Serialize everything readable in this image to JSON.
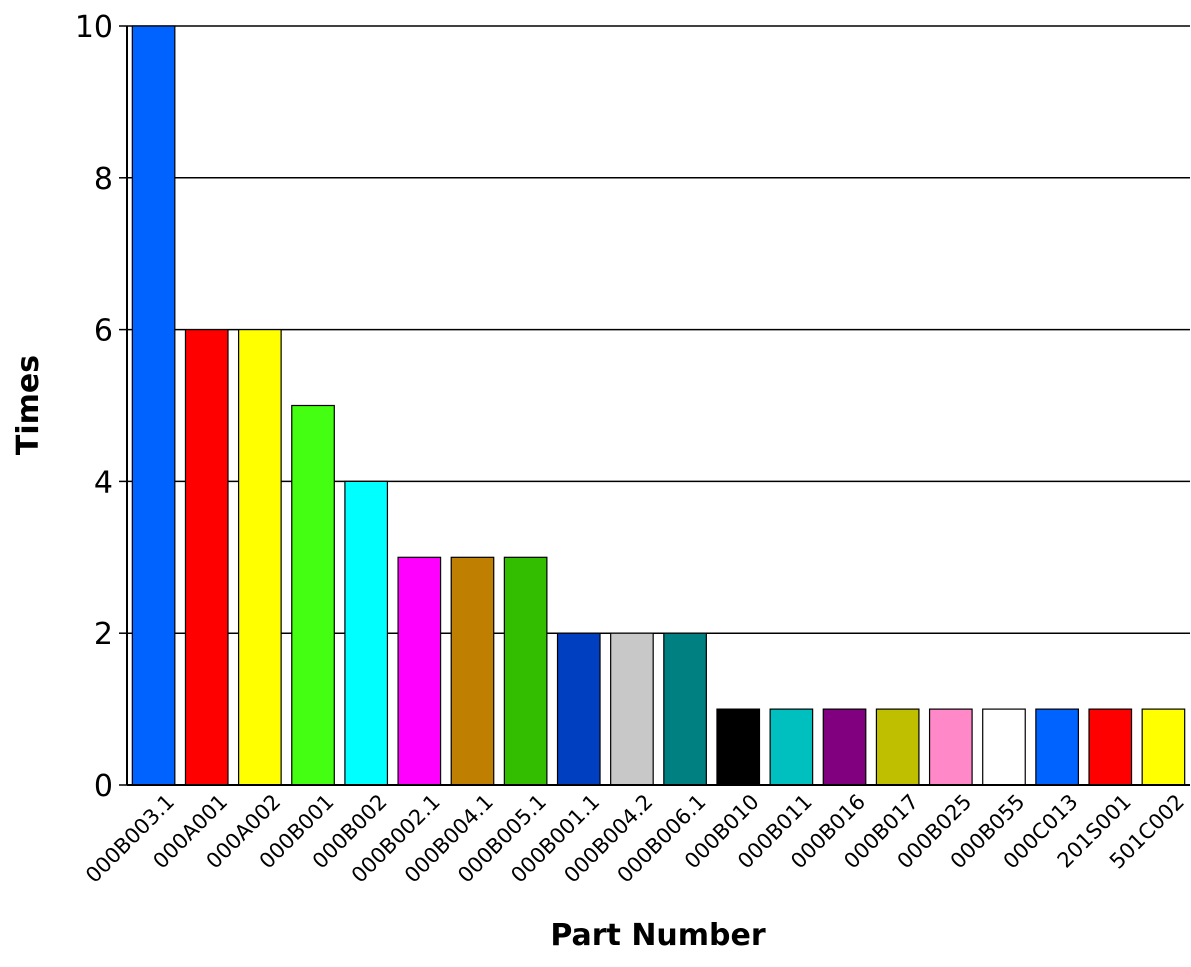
{
  "chart_data": {
    "type": "bar",
    "title": "",
    "xlabel": "Part Number",
    "ylabel": "Times",
    "ylim": [
      0,
      10
    ],
    "yticks": [
      0,
      2,
      4,
      6,
      8,
      10
    ],
    "grid": true,
    "categories": [
      "000B003.1",
      "000A001",
      "000A002",
      "000B001",
      "000B002",
      "000B002.1",
      "000B004.1",
      "000B005.1",
      "000B001.1",
      "000B004.2",
      "000B006.1",
      "000B010",
      "000B011",
      "000B016",
      "000B017",
      "000B025",
      "000B055",
      "000C013",
      "201S001",
      "501C002"
    ],
    "values": [
      10,
      6,
      6,
      5,
      4,
      3,
      3,
      3,
      2,
      2,
      2,
      1,
      1,
      1,
      1,
      1,
      1,
      1,
      1,
      1
    ],
    "colors": [
      "#0062ff",
      "#ff0000",
      "#ffff00",
      "#44ff11",
      "#00ffff",
      "#ff00ff",
      "#bf7f00",
      "#33bf00",
      "#003fbf",
      "#c8c8c8",
      "#008080",
      "#000000",
      "#00bfbf",
      "#800080",
      "#bfbf00",
      "#ff88c8",
      "#ffffff",
      "#0062ff",
      "#ff0000",
      "#ffff00"
    ]
  }
}
